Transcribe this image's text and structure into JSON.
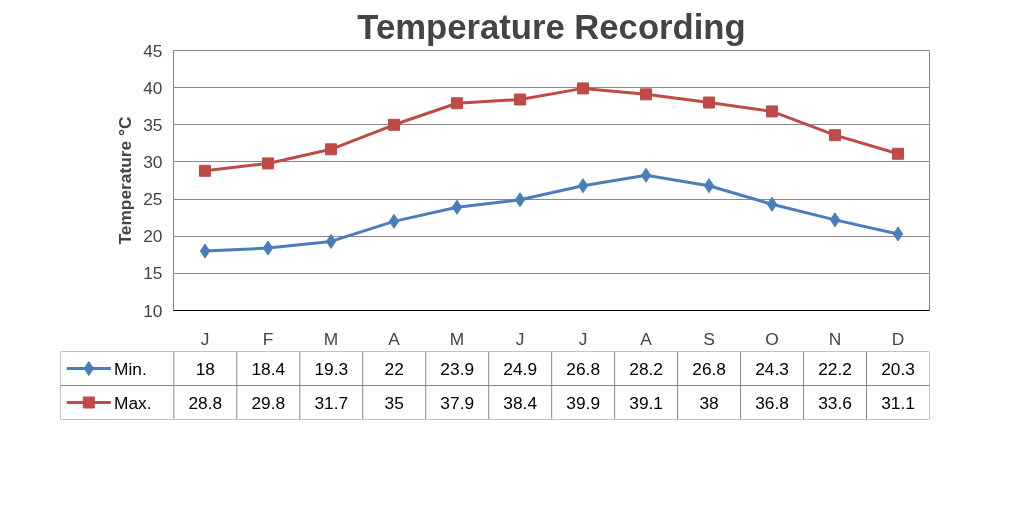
{
  "chart_data": {
    "type": "line",
    "title": "Temperature Recording",
    "ylabel": "Temperature °C",
    "categories": [
      "J",
      "F",
      "M",
      "A",
      "M",
      "J",
      "J",
      "A",
      "S",
      "O",
      "N",
      "D"
    ],
    "series": [
      {
        "name": "Min.",
        "color": "#4a7ebb",
        "marker": "diamond",
        "values": [
          18,
          18.4,
          19.3,
          22,
          23.9,
          24.9,
          26.8,
          28.2,
          26.8,
          24.3,
          22.2,
          20.3
        ]
      },
      {
        "name": "Max.",
        "color": "#be4b48",
        "marker": "square",
        "values": [
          28.8,
          29.8,
          31.7,
          35,
          37.9,
          38.4,
          39.9,
          39.1,
          38,
          36.8,
          33.6,
          31.1
        ]
      }
    ],
    "ylim": [
      10,
      45
    ],
    "yticks": [
      10,
      15,
      20,
      25,
      30,
      35,
      40,
      45
    ],
    "grid": "y",
    "legend": "bottom",
    "data_labels": true,
    "line_style": "solid"
  }
}
